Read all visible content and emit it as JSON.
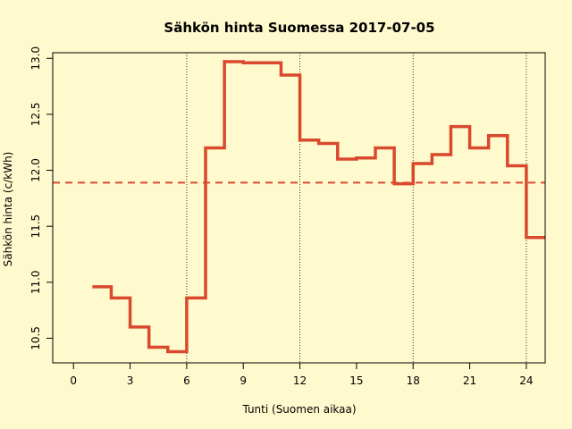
{
  "chart_data": {
    "type": "line",
    "step": true,
    "title": "Sähkön hinta Suomessa 2017-07-05",
    "xlabel": "Tunti (Suomen aikaa)",
    "ylabel": "Sähkön hinta (c/kWh)",
    "xlim": [
      -1.1,
      25
    ],
    "ylim": [
      10.28,
      13.05
    ],
    "xticks": [
      0,
      3,
      6,
      9,
      12,
      15,
      18,
      21,
      24
    ],
    "yticks": [
      10.5,
      11.0,
      11.5,
      12.0,
      12.5,
      13.0
    ],
    "ytick_labels": [
      "10.5",
      "11.0",
      "11.5",
      "12.0",
      "12.5",
      "13.0"
    ],
    "vertical_gridlines_x": [
      6,
      12,
      18,
      24
    ],
    "series": [
      {
        "x": [
          1,
          2,
          3,
          4,
          5,
          6,
          7,
          8,
          9,
          10,
          11,
          12,
          13,
          14,
          15,
          16,
          17,
          18,
          19,
          20,
          21,
          22,
          23,
          24
        ],
        "values": [
          10.96,
          10.86,
          10.6,
          10.42,
          10.38,
          10.86,
          12.2,
          12.97,
          12.96,
          12.96,
          12.85,
          12.27,
          12.24,
          12.1,
          12.11,
          12.2,
          11.88,
          12.06,
          12.14,
          12.39,
          12.2,
          12.31,
          12.04,
          11.4
        ],
        "color": "#D9492E"
      }
    ],
    "average_line": {
      "value": 11.89,
      "style": "dashed",
      "color": "#D9492E"
    }
  }
}
